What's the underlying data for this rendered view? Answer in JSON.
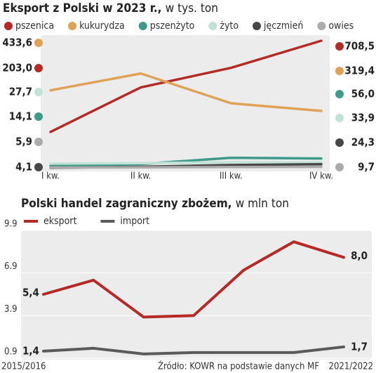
{
  "chart_data": [
    {
      "type": "line",
      "title": "Eksport z Polski w 2023 r.,",
      "subtitle": "w tys. ton",
      "categories": [
        "I kw.",
        "II kw.",
        "III kw.",
        "IV kw."
      ],
      "ylim": [
        0,
        720
      ],
      "series": [
        {
          "name": "pszenica",
          "color": "#b52a26",
          "values": [
            203.0,
            450,
            558,
            708.5
          ],
          "value_labels": [
            "203,0",
            null,
            null,
            "708,5"
          ]
        },
        {
          "name": "kukurydza",
          "color": "#dfa256",
          "values": [
            433.6,
            527,
            362,
            319.4
          ],
          "value_labels": [
            "433,6",
            null,
            null,
            "319,4"
          ]
        },
        {
          "name": "pszenżyto",
          "color": "#3e9a89",
          "values": [
            14.1,
            25,
            60,
            56.0
          ],
          "value_labels": [
            "14,1",
            null,
            null,
            "56,0"
          ]
        },
        {
          "name": "żyto",
          "color": "#c2e2d8",
          "values": [
            27.7,
            30,
            35,
            33.9
          ],
          "value_labels": [
            "27,7",
            null,
            null,
            "33,9"
          ]
        },
        {
          "name": "jęczmień",
          "color": "#474747",
          "values": [
            4.1,
            10,
            20,
            24.3
          ],
          "value_labels": [
            "4,1",
            null,
            null,
            "24,3"
          ]
        },
        {
          "name": "owies",
          "color": "#ababab",
          "values": [
            5.9,
            7,
            9,
            9.7
          ],
          "value_labels": [
            "5,9",
            null,
            null,
            "9,7"
          ]
        }
      ]
    },
    {
      "type": "line",
      "title": "Polski handel zagraniczny zbożem,",
      "subtitle": "w mln ton",
      "categories": [
        "2015/2016",
        null,
        null,
        null,
        null,
        null,
        "2021/2022"
      ],
      "ylim": [
        0.9,
        9.9
      ],
      "yticks": [
        0.9,
        3.9,
        6.9,
        9.9
      ],
      "note": "Źródło: KOWR na podstawie danych MF",
      "series": [
        {
          "name": "eksport",
          "color": "#b52a26",
          "values": [
            5.4,
            6.4,
            3.8,
            3.9,
            7.1,
            9.1,
            8.0
          ],
          "value_labels": [
            "5,4",
            null,
            null,
            null,
            null,
            null,
            "8,0"
          ]
        },
        {
          "name": "import",
          "color": "#5a5a5a",
          "values": [
            1.4,
            1.6,
            1.2,
            1.3,
            1.3,
            1.3,
            1.7
          ],
          "value_labels": [
            "1,4",
            null,
            null,
            null,
            null,
            null,
            "1,7"
          ]
        }
      ]
    }
  ]
}
